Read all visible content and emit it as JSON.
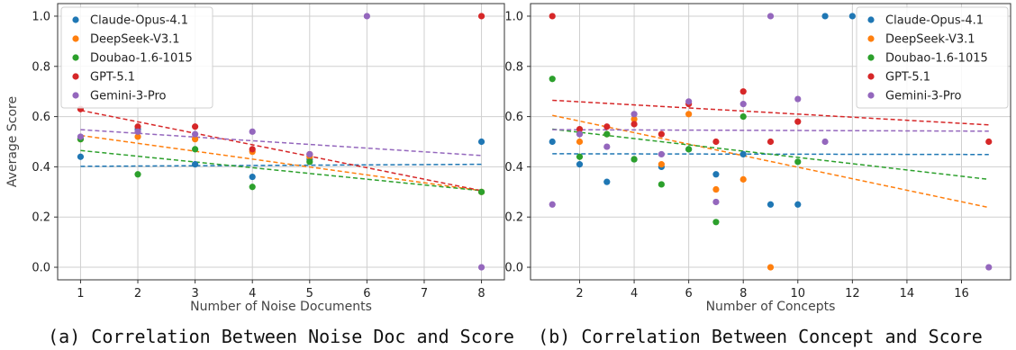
{
  "colors": {
    "Claude-Opus-4.1": "#1f77b4",
    "DeepSeek-V3.1": "#ff7f0e",
    "Doubao-1.6-1015": "#2ca02c",
    "GPT-5.1": "#d62728",
    "Gemini-3-Pro": "#9467bd"
  },
  "chart_data": [
    {
      "type": "scatter",
      "caption": "(a) Correlation Between Noise Doc and Score",
      "xlabel": "Number of Noise Documents",
      "ylabel": "Average Score",
      "xlim": [
        0.6,
        8.4
      ],
      "ylim": [
        -0.05,
        1.05
      ],
      "xticks": [
        1,
        2,
        3,
        4,
        5,
        6,
        7,
        8
      ],
      "yticks": [
        0.0,
        0.2,
        0.4,
        0.6,
        0.8,
        1.0
      ],
      "ytick_labels": [
        "0.0",
        "0.2",
        "0.4",
        "0.6",
        "0.8",
        "1.0"
      ],
      "grid": true,
      "legend": "top-left",
      "series": [
        {
          "name": "Claude-Opus-4.1",
          "points": [
            [
              1,
              0.44
            ],
            [
              2,
              0.55
            ],
            [
              3,
              0.41
            ],
            [
              4,
              0.36
            ],
            [
              5,
              0.43
            ],
            [
              8,
              0.5
            ]
          ],
          "trend": [
            [
              1,
              0.402
            ],
            [
              8,
              0.41
            ]
          ]
        },
        {
          "name": "DeepSeek-V3.1",
          "points": [
            [
              1,
              0.51
            ],
            [
              2,
              0.52
            ],
            [
              3,
              0.51
            ],
            [
              4,
              0.46
            ],
            [
              5,
              0.44
            ],
            [
              8,
              0.3
            ]
          ],
          "trend": [
            [
              1,
              0.525
            ],
            [
              8,
              0.305
            ]
          ]
        },
        {
          "name": "Doubao-1.6-1015",
          "points": [
            [
              1,
              0.51
            ],
            [
              2,
              0.37
            ],
            [
              3,
              0.47
            ],
            [
              4,
              0.32
            ],
            [
              5,
              0.42
            ],
            [
              8,
              0.3
            ]
          ],
          "trend": [
            [
              1,
              0.465
            ],
            [
              8,
              0.305
            ]
          ]
        },
        {
          "name": "GPT-5.1",
          "points": [
            [
              1,
              0.63
            ],
            [
              2,
              0.56
            ],
            [
              3,
              0.56
            ],
            [
              4,
              0.47
            ],
            [
              5,
              0.45
            ],
            [
              8,
              1.0
            ]
          ],
          "trend": [
            [
              1,
              0.625
            ],
            [
              8,
              0.305
            ]
          ]
        },
        {
          "name": "Gemini-3-Pro",
          "points": [
            [
              1,
              0.52
            ],
            [
              2,
              0.54
            ],
            [
              3,
              0.53
            ],
            [
              4,
              0.54
            ],
            [
              5,
              0.45
            ],
            [
              6,
              1.0
            ],
            [
              8,
              0.0
            ]
          ],
          "trend": [
            [
              1,
              0.548
            ],
            [
              8,
              0.445
            ]
          ]
        }
      ]
    },
    {
      "type": "scatter",
      "caption": "(b) Correlation Between Concept and Score",
      "xlabel": "Number of Concepts",
      "ylabel": "",
      "xlim": [
        0.2,
        17.8
      ],
      "ylim": [
        -0.05,
        1.05
      ],
      "xticks": [
        2,
        4,
        6,
        8,
        10,
        12,
        14,
        16
      ],
      "yticks": [
        0.0,
        0.2,
        0.4,
        0.6,
        0.8,
        1.0
      ],
      "ytick_labels": [
        "0.0",
        "0.2",
        "0.4",
        "0.6",
        "0.8",
        "1.0"
      ],
      "grid": true,
      "legend": "top-right",
      "series": [
        {
          "name": "Claude-Opus-4.1",
          "points": [
            [
              1,
              0.5
            ],
            [
              2,
              0.41
            ],
            [
              3,
              0.34
            ],
            [
              4,
              0.43
            ],
            [
              5,
              0.4
            ],
            [
              6,
              0.47
            ],
            [
              7,
              0.37
            ],
            [
              8,
              0.45
            ],
            [
              9,
              0.25
            ],
            [
              10,
              0.25
            ],
            [
              11,
              1.0
            ],
            [
              12,
              1.0
            ]
          ],
          "trend": [
            [
              1,
              0.452
            ],
            [
              17,
              0.449
            ]
          ]
        },
        {
          "name": "DeepSeek-V3.1",
          "points": [
            [
              2,
              0.5
            ],
            [
              3,
              0.53
            ],
            [
              4,
              0.59
            ],
            [
              5,
              0.41
            ],
            [
              6,
              0.61
            ],
            [
              7,
              0.31
            ],
            [
              8,
              0.35
            ],
            [
              9,
              0.0
            ]
          ],
          "trend": [
            [
              1,
              0.605
            ],
            [
              17,
              0.238
            ]
          ]
        },
        {
          "name": "Doubao-1.6-1015",
          "points": [
            [
              1,
              0.75
            ],
            [
              2,
              0.44
            ],
            [
              3,
              0.53
            ],
            [
              4,
              0.43
            ],
            [
              5,
              0.33
            ],
            [
              6,
              0.47
            ],
            [
              7,
              0.18
            ],
            [
              8,
              0.6
            ],
            [
              10,
              0.42
            ]
          ],
          "trend": [
            [
              1,
              0.55
            ],
            [
              17,
              0.35
            ]
          ]
        },
        {
          "name": "GPT-5.1",
          "points": [
            [
              1,
              1.0
            ],
            [
              2,
              0.55
            ],
            [
              3,
              0.56
            ],
            [
              4,
              0.57
            ],
            [
              5,
              0.53
            ],
            [
              6,
              0.65
            ],
            [
              7,
              0.5
            ],
            [
              8,
              0.7
            ],
            [
              9,
              0.5
            ],
            [
              10,
              0.58
            ],
            [
              17,
              0.5
            ]
          ],
          "trend": [
            [
              1,
              0.665
            ],
            [
              17,
              0.567
            ]
          ]
        },
        {
          "name": "Gemini-3-Pro",
          "points": [
            [
              1,
              0.25
            ],
            [
              2,
              0.53
            ],
            [
              3,
              0.48
            ],
            [
              4,
              0.61
            ],
            [
              5,
              0.45
            ],
            [
              6,
              0.66
            ],
            [
              7,
              0.26
            ],
            [
              8,
              0.65
            ],
            [
              9,
              1.0
            ],
            [
              10,
              0.67
            ],
            [
              11,
              0.5
            ],
            [
              17,
              0.0
            ]
          ],
          "trend": [
            [
              1,
              0.548
            ],
            [
              17,
              0.542
            ]
          ]
        }
      ]
    }
  ]
}
